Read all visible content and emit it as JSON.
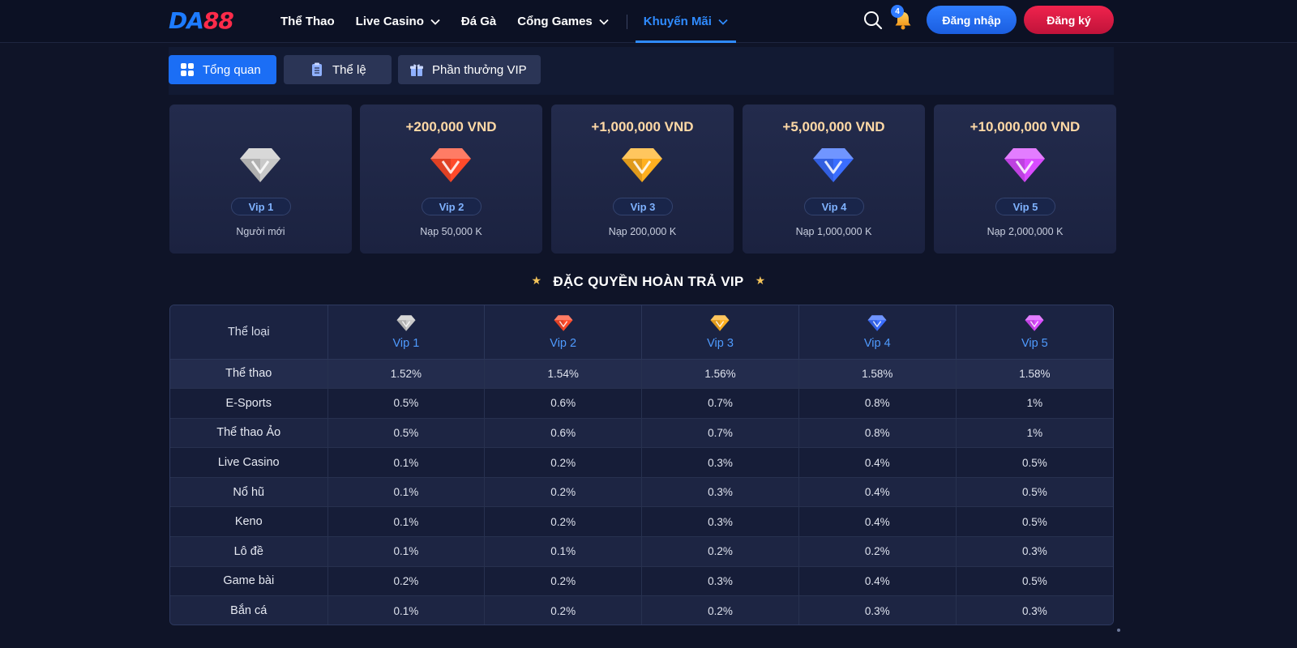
{
  "header": {
    "logo_part1": "DA",
    "logo_part2": "88",
    "nav": [
      {
        "label": "Thể Thao"
      },
      {
        "label": "Live Casino"
      },
      {
        "label": "Đá Gà"
      },
      {
        "label": "Cổng Games"
      },
      {
        "label": "Khuyến Mãi"
      }
    ],
    "notification_count": "4",
    "login_label": "Đăng nhập",
    "register_label": "Đăng ký",
    "icons": [
      "search-icon",
      "bell-icon",
      "chevron-down-icon"
    ],
    "colors": {
      "brand_blue": "#1d7bff",
      "brand_red": "#ff2b4a",
      "active_nav": "#2f8bff"
    }
  },
  "tabs": [
    {
      "label": "Tổng quan",
      "icon": "grid-icon",
      "active": true
    },
    {
      "label": "Thể lệ",
      "icon": "clipboard-icon",
      "active": false
    },
    {
      "label": "Phần thưởng VIP",
      "icon": "gift-icon",
      "active": false
    }
  ],
  "vip_cards": [
    {
      "reward": "",
      "level": "Vip 1",
      "condition": "Người mới",
      "gem_color": "#c9c9c9"
    },
    {
      "reward": "+200,000 VND",
      "level": "Vip 2",
      "condition": "Nạp 50,000 K",
      "gem_color": "#ff4a2a"
    },
    {
      "reward": "+1,000,000 VND",
      "level": "Vip 3",
      "condition": "Nạp 200,000 K",
      "gem_color": "#ffb020"
    },
    {
      "reward": "+5,000,000 VND",
      "level": "Vip 4",
      "condition": "Nạp 1,000,000 K",
      "gem_color": "#3a6dff"
    },
    {
      "reward": "+10,000,000 VND",
      "level": "Vip 5",
      "condition": "Nạp 2,000,000 K",
      "gem_color": "#d94bff"
    }
  ],
  "section_title": "ĐẶC QUYỀN HOÀN TRẢ VIP",
  "table": {
    "corner_header": "Thể loại",
    "columns": [
      "Vip 1",
      "Vip 2",
      "Vip 3",
      "Vip 4",
      "Vip 5"
    ],
    "rows": [
      {
        "category": "Thể thao",
        "values": [
          "1.52%",
          "1.54%",
          "1.56%",
          "1.58%",
          "1.58%"
        ]
      },
      {
        "category": "E-Sports",
        "values": [
          "0.5%",
          "0.6%",
          "0.7%",
          "0.8%",
          "1%"
        ]
      },
      {
        "category": "Thể thao Ảo",
        "values": [
          "0.5%",
          "0.6%",
          "0.7%",
          "0.8%",
          "1%"
        ]
      },
      {
        "category": "Live Casino",
        "values": [
          "0.1%",
          "0.2%",
          "0.3%",
          "0.4%",
          "0.5%"
        ]
      },
      {
        "category": "Nổ hũ",
        "values": [
          "0.1%",
          "0.2%",
          "0.3%",
          "0.4%",
          "0.5%"
        ]
      },
      {
        "category": "Keno",
        "values": [
          "0.1%",
          "0.2%",
          "0.3%",
          "0.4%",
          "0.5%"
        ]
      },
      {
        "category": "Lô đề",
        "values": [
          "0.1%",
          "0.1%",
          "0.2%",
          "0.2%",
          "0.3%"
        ]
      },
      {
        "category": "Game bài",
        "values": [
          "0.2%",
          "0.2%",
          "0.3%",
          "0.4%",
          "0.5%"
        ]
      },
      {
        "category": "Bắn cá",
        "values": [
          "0.1%",
          "0.2%",
          "0.2%",
          "0.3%",
          "0.3%"
        ]
      }
    ]
  }
}
